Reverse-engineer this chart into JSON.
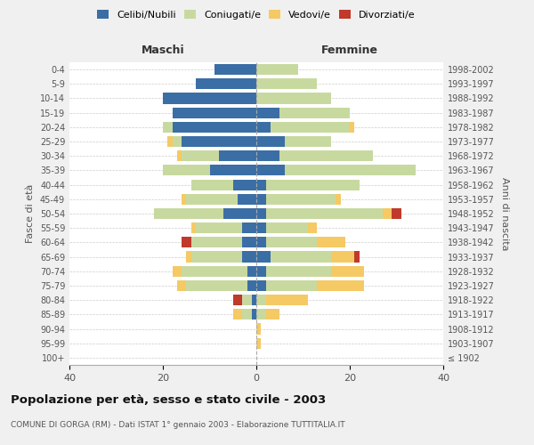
{
  "age_groups": [
    "100+",
    "95-99",
    "90-94",
    "85-89",
    "80-84",
    "75-79",
    "70-74",
    "65-69",
    "60-64",
    "55-59",
    "50-54",
    "45-49",
    "40-44",
    "35-39",
    "30-34",
    "25-29",
    "20-24",
    "15-19",
    "10-14",
    "5-9",
    "0-4"
  ],
  "birth_years": [
    "≤ 1902",
    "1903-1907",
    "1908-1912",
    "1913-1917",
    "1918-1922",
    "1923-1927",
    "1928-1932",
    "1933-1937",
    "1938-1942",
    "1943-1947",
    "1948-1952",
    "1953-1957",
    "1958-1962",
    "1963-1967",
    "1968-1972",
    "1973-1977",
    "1978-1982",
    "1983-1987",
    "1988-1992",
    "1993-1997",
    "1998-2002"
  ],
  "maschi": {
    "celibi": [
      0,
      0,
      0,
      1,
      1,
      2,
      2,
      3,
      3,
      3,
      7,
      4,
      5,
      10,
      8,
      16,
      18,
      18,
      20,
      13,
      9
    ],
    "coniugati": [
      0,
      0,
      0,
      2,
      2,
      13,
      14,
      11,
      11,
      10,
      15,
      11,
      9,
      10,
      8,
      2,
      2,
      0,
      0,
      0,
      0
    ],
    "vedovi": [
      0,
      0,
      0,
      2,
      0,
      2,
      2,
      1,
      0,
      1,
      0,
      1,
      0,
      0,
      1,
      1,
      0,
      0,
      0,
      0,
      0
    ],
    "divorziati": [
      0,
      0,
      0,
      0,
      2,
      0,
      0,
      0,
      2,
      0,
      0,
      0,
      0,
      0,
      0,
      0,
      0,
      0,
      0,
      0,
      0
    ]
  },
  "femmine": {
    "nubili": [
      0,
      0,
      0,
      0,
      0,
      2,
      2,
      3,
      2,
      2,
      2,
      2,
      2,
      6,
      5,
      6,
      3,
      5,
      0,
      0,
      0
    ],
    "coniugate": [
      0,
      0,
      0,
      2,
      2,
      11,
      14,
      13,
      11,
      9,
      25,
      15,
      20,
      28,
      20,
      10,
      17,
      15,
      16,
      13,
      9
    ],
    "vedove": [
      0,
      1,
      1,
      3,
      9,
      10,
      7,
      5,
      6,
      2,
      2,
      1,
      0,
      0,
      0,
      0,
      1,
      0,
      0,
      0,
      0
    ],
    "divorziate": [
      0,
      0,
      0,
      0,
      0,
      0,
      0,
      1,
      0,
      0,
      2,
      0,
      0,
      0,
      0,
      0,
      0,
      0,
      0,
      0,
      0
    ]
  },
  "colors": {
    "celibi_nubili": "#3b6ea5",
    "coniugati": "#c8d9a0",
    "vedovi": "#f5c964",
    "divorziati": "#c0392b"
  },
  "xlim": 40,
  "title": "Popolazione per età, sesso e stato civile - 2003",
  "subtitle": "COMUNE DI GORGA (RM) - Dati ISTAT 1° gennaio 2003 - Elaborazione TUTTITALIA.IT",
  "ylabel_left": "Fasce di età",
  "ylabel_right": "Anni di nascita",
  "xlabel_maschi": "Maschi",
  "xlabel_femmine": "Femmine",
  "legend_labels": [
    "Celibi/Nubili",
    "Coniugati/e",
    "Vedovi/e",
    "Divorziati/e"
  ],
  "background_color": "#f0f0f0",
  "plot_bg": "#ffffff"
}
